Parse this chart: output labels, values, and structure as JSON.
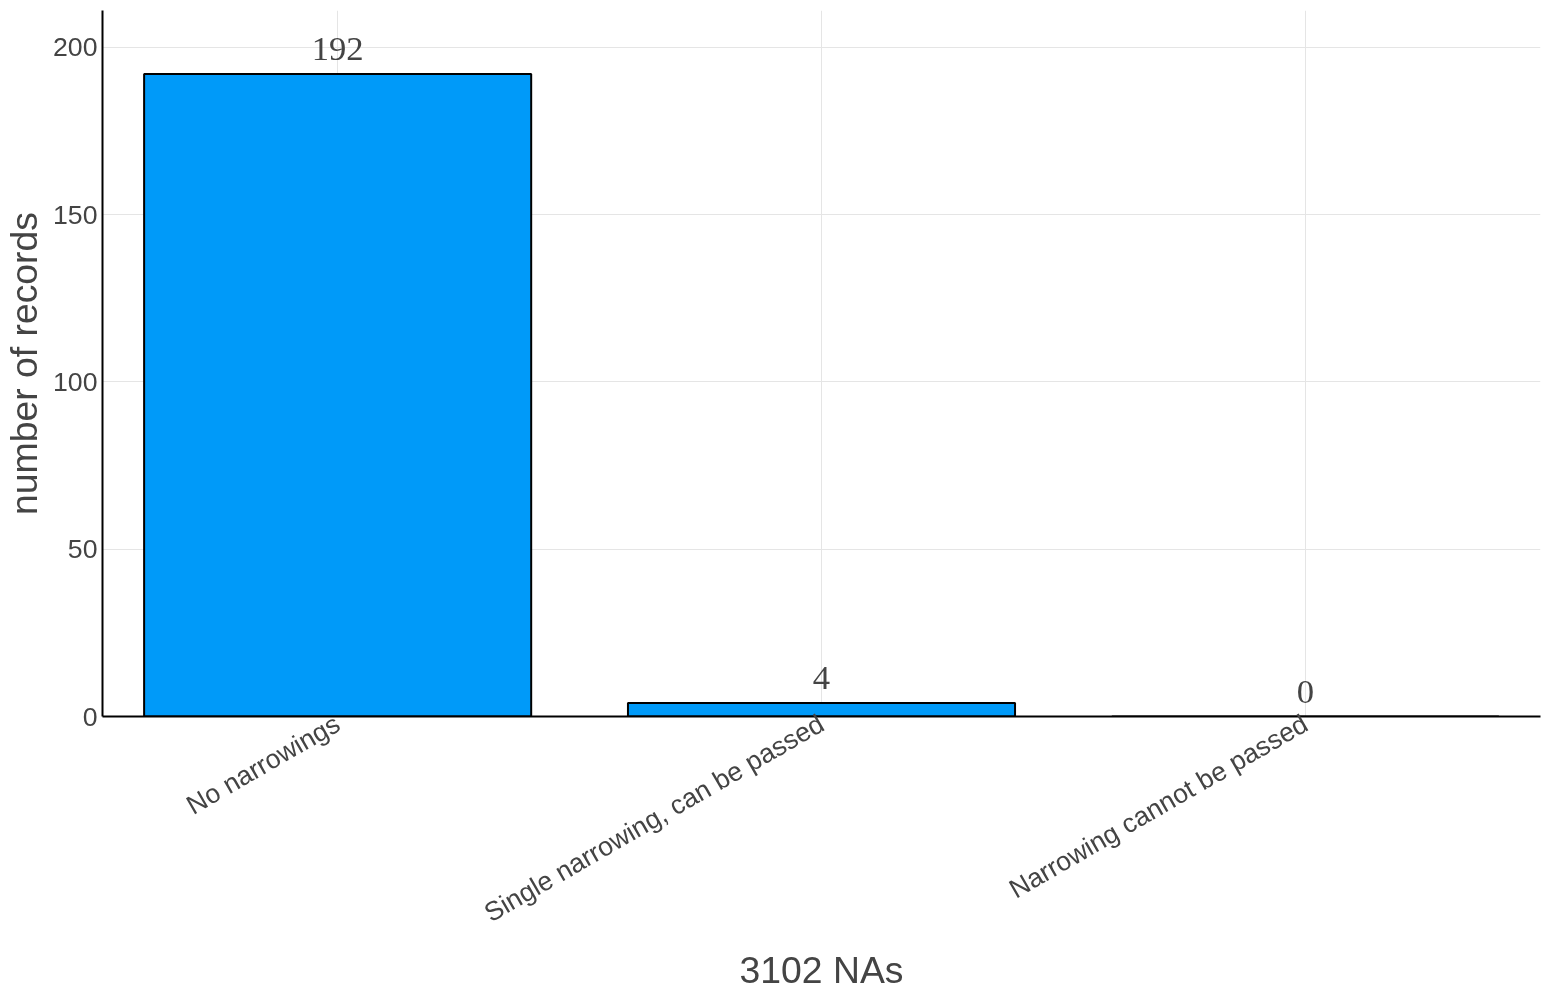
{
  "chart_data": {
    "type": "bar",
    "xlabel": "3102 NAs",
    "ylabel": "number of records",
    "categories": [
      "No narrowings",
      "Single narrowing, can be passed",
      "Narrowing cannot be passed"
    ],
    "values": [
      192,
      4,
      0
    ],
    "color": "#009af9",
    "ylim": [
      0,
      211
    ],
    "yticks": [
      0,
      50,
      100,
      150,
      200
    ],
    "grid": true,
    "data_labels": true
  }
}
